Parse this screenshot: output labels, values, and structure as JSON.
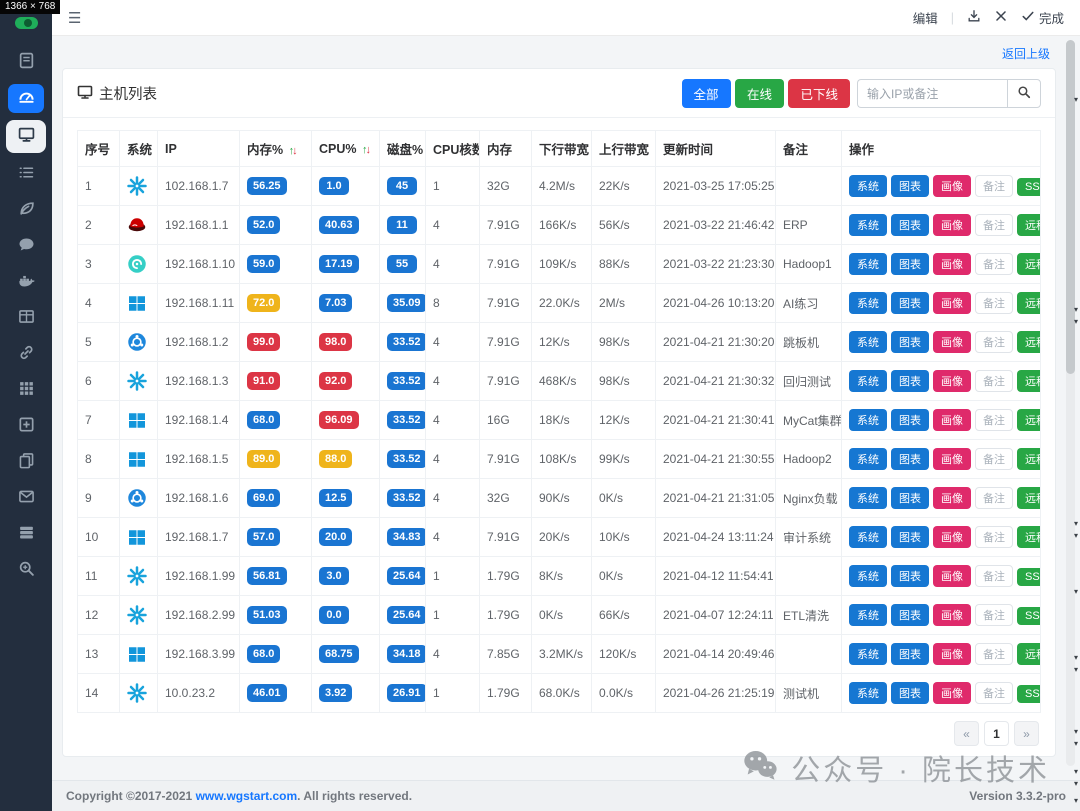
{
  "device": {
    "label": "1366 × 768"
  },
  "topbar": {
    "edit": "编辑",
    "done": "完成"
  },
  "breadcrumb": {
    "back": "返回上级"
  },
  "sidebar": {
    "items": [
      {
        "name": "menu-docs",
        "icon": "book",
        "state": "default"
      },
      {
        "name": "menu-dashboard",
        "icon": "gauge",
        "state": "active"
      },
      {
        "name": "menu-hosts",
        "icon": "monitor",
        "state": "selected"
      },
      {
        "name": "menu-tasks",
        "icon": "list",
        "state": "default"
      },
      {
        "name": "menu-leaf",
        "icon": "leaf",
        "state": "default"
      },
      {
        "name": "menu-message",
        "icon": "chat",
        "state": "default"
      },
      {
        "name": "menu-docker",
        "icon": "docker",
        "state": "default"
      },
      {
        "name": "menu-table",
        "icon": "table",
        "state": "default"
      },
      {
        "name": "menu-link",
        "icon": "link",
        "state": "default"
      },
      {
        "name": "menu-apps",
        "icon": "grid",
        "state": "default"
      },
      {
        "name": "menu-add",
        "icon": "plus",
        "state": "default"
      },
      {
        "name": "menu-copy",
        "icon": "copy",
        "state": "default"
      },
      {
        "name": "menu-mail",
        "icon": "mail",
        "state": "default"
      },
      {
        "name": "menu-servers",
        "icon": "stack",
        "state": "default"
      },
      {
        "name": "menu-search",
        "icon": "zoom",
        "state": "default"
      }
    ]
  },
  "panel": {
    "title": "主机列表",
    "filters": [
      {
        "id": "all",
        "label": "全部",
        "color": "#1677ff"
      },
      {
        "id": "online",
        "label": "在线",
        "color": "#28a745"
      },
      {
        "id": "offline",
        "label": "已下线",
        "color": "#dc3545"
      }
    ],
    "search_placeholder": "输入IP或备注"
  },
  "table": {
    "headers": [
      "序号",
      "系统",
      "IP",
      "内存%",
      "CPU%",
      "磁盘%",
      "CPU核数",
      "内存",
      "下行带宽",
      "上行带宽",
      "更新时间",
      "备注",
      "操作"
    ],
    "sortable_headers": [
      "内存%",
      "CPU%"
    ],
    "actions": [
      "系统",
      "图表",
      "画像",
      "备注"
    ],
    "rows": [
      {
        "no": "1",
        "os": "centos",
        "ip": "102.168.1.7",
        "mem": {
          "v": "56.25",
          "lv": "normal"
        },
        "cpu": {
          "v": "1.0",
          "lv": "normal"
        },
        "disk": {
          "v": "45",
          "lv": "normal"
        },
        "cores": "1",
        "ram": "32G",
        "down": "4.2M/s",
        "up": "22K/s",
        "time": "2021-03-25 17:05:25",
        "note": "",
        "remote": "SSH"
      },
      {
        "no": "2",
        "os": "redhat",
        "ip": "192.168.1.1",
        "mem": {
          "v": "52.0",
          "lv": "normal"
        },
        "cpu": {
          "v": "40.63",
          "lv": "normal"
        },
        "disk": {
          "v": "11",
          "lv": "normal"
        },
        "cores": "4",
        "ram": "7.91G",
        "down": "166K/s",
        "up": "56K/s",
        "time": "2021-03-22 21:46:42",
        "note": "ERP",
        "remote": "远程"
      },
      {
        "no": "3",
        "os": "debian",
        "ip": "192.168.1.10",
        "mem": {
          "v": "59.0",
          "lv": "normal"
        },
        "cpu": {
          "v": "17.19",
          "lv": "normal"
        },
        "disk": {
          "v": "55",
          "lv": "normal"
        },
        "cores": "4",
        "ram": "7.91G",
        "down": "109K/s",
        "up": "88K/s",
        "time": "2021-03-22 21:23:30",
        "note": "Hadoop1",
        "remote": "远程"
      },
      {
        "no": "4",
        "os": "windows",
        "ip": "192.168.1.11",
        "mem": {
          "v": "72.0",
          "lv": "warn"
        },
        "cpu": {
          "v": "7.03",
          "lv": "normal"
        },
        "disk": {
          "v": "35.09",
          "lv": "normal"
        },
        "cores": "8",
        "ram": "7.91G",
        "down": "22.0K/s",
        "up": "2M/s",
        "time": "2021-04-26 10:13:20",
        "note": "AI练习",
        "remote": "远程"
      },
      {
        "no": "5",
        "os": "ubuntu",
        "ip": "192.168.1.2",
        "mem": {
          "v": "99.0",
          "lv": "danger"
        },
        "cpu": {
          "v": "98.0",
          "lv": "danger"
        },
        "disk": {
          "v": "33.52",
          "lv": "normal"
        },
        "cores": "4",
        "ram": "7.91G",
        "down": "12K/s",
        "up": "98K/s",
        "time": "2021-04-21 21:30:20",
        "note": "跳板机",
        "remote": "远程"
      },
      {
        "no": "6",
        "os": "centos",
        "ip": "192.168.1.3",
        "mem": {
          "v": "91.0",
          "lv": "danger"
        },
        "cpu": {
          "v": "92.0",
          "lv": "danger"
        },
        "disk": {
          "v": "33.52",
          "lv": "normal"
        },
        "cores": "4",
        "ram": "7.91G",
        "down": "468K/s",
        "up": "98K/s",
        "time": "2021-04-21 21:30:32",
        "note": "回归测试",
        "remote": "远程"
      },
      {
        "no": "7",
        "os": "windows",
        "ip": "192.168.1.4",
        "mem": {
          "v": "68.0",
          "lv": "normal"
        },
        "cpu": {
          "v": "96.09",
          "lv": "danger"
        },
        "disk": {
          "v": "33.52",
          "lv": "normal"
        },
        "cores": "4",
        "ram": "16G",
        "down": "18K/s",
        "up": "12K/s",
        "time": "2021-04-21 21:30:41",
        "note": "MyCat集群",
        "remote": "远程"
      },
      {
        "no": "8",
        "os": "windows",
        "ip": "192.168.1.5",
        "mem": {
          "v": "89.0",
          "lv": "warn"
        },
        "cpu": {
          "v": "88.0",
          "lv": "warn"
        },
        "disk": {
          "v": "33.52",
          "lv": "normal"
        },
        "cores": "4",
        "ram": "7.91G",
        "down": "108K/s",
        "up": "99K/s",
        "time": "2021-04-21 21:30:55",
        "note": "Hadoop2",
        "remote": "远程"
      },
      {
        "no": "9",
        "os": "ubuntu",
        "ip": "192.168.1.6",
        "mem": {
          "v": "69.0",
          "lv": "normal"
        },
        "cpu": {
          "v": "12.5",
          "lv": "normal"
        },
        "disk": {
          "v": "33.52",
          "lv": "normal"
        },
        "cores": "4",
        "ram": "32G",
        "down": "90K/s",
        "up": "0K/s",
        "time": "2021-04-21 21:31:05",
        "note": "Nginx负载",
        "remote": "远程"
      },
      {
        "no": "10",
        "os": "windows",
        "ip": "192.168.1.7",
        "mem": {
          "v": "57.0",
          "lv": "normal"
        },
        "cpu": {
          "v": "20.0",
          "lv": "normal"
        },
        "disk": {
          "v": "34.83",
          "lv": "normal"
        },
        "cores": "4",
        "ram": "7.91G",
        "down": "20K/s",
        "up": "10K/s",
        "time": "2021-04-24 13:11:24",
        "note": "审计系统",
        "remote": "远程"
      },
      {
        "no": "11",
        "os": "centos",
        "ip": "192.168.1.99",
        "mem": {
          "v": "56.81",
          "lv": "normal"
        },
        "cpu": {
          "v": "3.0",
          "lv": "normal"
        },
        "disk": {
          "v": "25.64",
          "lv": "normal"
        },
        "cores": "1",
        "ram": "1.79G",
        "down": "8K/s",
        "up": "0K/s",
        "time": "2021-04-12 11:54:41",
        "note": "",
        "remote": "SSH"
      },
      {
        "no": "12",
        "os": "centos",
        "ip": "192.168.2.99",
        "mem": {
          "v": "51.03",
          "lv": "normal"
        },
        "cpu": {
          "v": "0.0",
          "lv": "normal"
        },
        "disk": {
          "v": "25.64",
          "lv": "normal"
        },
        "cores": "1",
        "ram": "1.79G",
        "down": "0K/s",
        "up": "66K/s",
        "time": "2021-04-07 12:24:11",
        "note": "ETL清洗",
        "remote": "SSH"
      },
      {
        "no": "13",
        "os": "windows",
        "ip": "192.168.3.99",
        "mem": {
          "v": "68.0",
          "lv": "normal"
        },
        "cpu": {
          "v": "68.75",
          "lv": "normal"
        },
        "disk": {
          "v": "34.18",
          "lv": "normal"
        },
        "cores": "4",
        "ram": "7.85G",
        "down": "3.2MK/s",
        "up": "120K/s",
        "time": "2021-04-14 20:49:46",
        "note": "",
        "remote": "远程"
      },
      {
        "no": "14",
        "os": "centos",
        "ip": "10.0.23.2",
        "mem": {
          "v": "46.01",
          "lv": "normal"
        },
        "cpu": {
          "v": "3.92",
          "lv": "normal"
        },
        "disk": {
          "v": "26.91",
          "lv": "normal"
        },
        "cores": "1",
        "ram": "1.79G",
        "down": "68.0K/s",
        "up": "0.0K/s",
        "time": "2021-04-26 21:25:19",
        "note": "测试机",
        "remote": "SSH"
      }
    ]
  },
  "pagination": {
    "prev": "«",
    "page": "1",
    "next": "»"
  },
  "watermark": {
    "text": "公众号 · 院长技术"
  },
  "footer": {
    "copyright_prefix": "Copyright ©2017-2021 ",
    "site": "www.wgstart.com",
    "copyright_suffix": ". All rights reserved.",
    "version": "Version 3.3.2-pro"
  },
  "colors": {
    "accent_blue": "#1677ff",
    "green": "#28a745",
    "red": "#dc3545",
    "badge_blue": "#1a75d2",
    "badge_warn": "#efb41b",
    "badge_danger": "#dc3545",
    "action_pink": "#df2a6b",
    "sidebar_bg": "#232e3e"
  }
}
